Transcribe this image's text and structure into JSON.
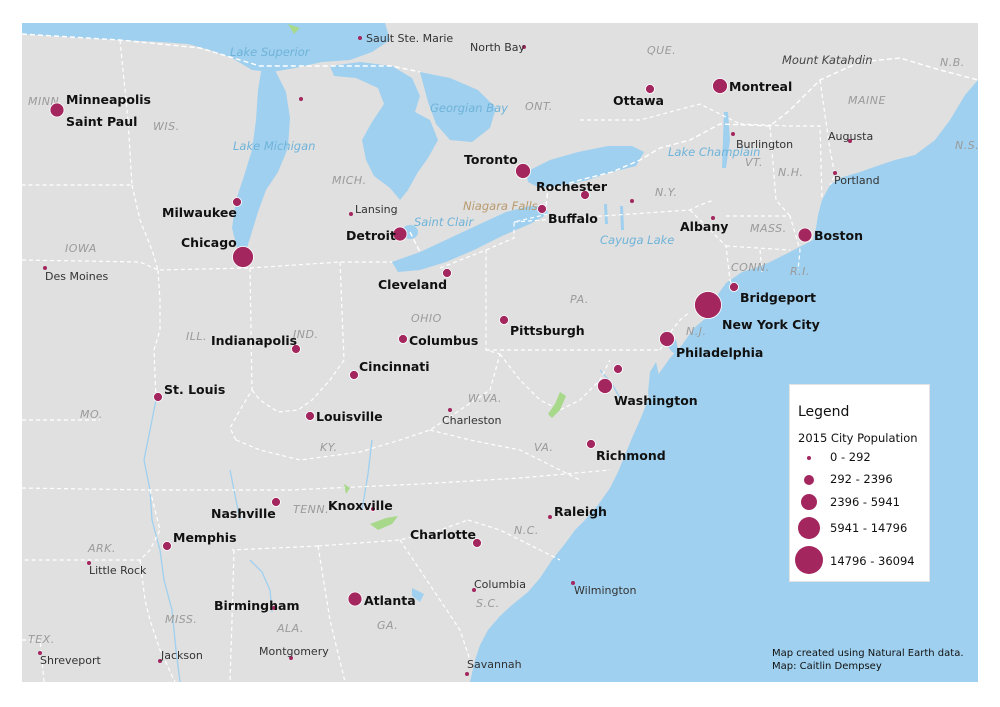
{
  "legend": {
    "title": "Legend",
    "subtitle": "2015 City Population",
    "classes": [
      "0 - 292",
      "292 - 2396",
      "2396 - 5941",
      "5941 - 14796",
      "14796 - 36094"
    ]
  },
  "credits": {
    "line1": "Map created using Natural Earth data.",
    "line2": "Map: Caitlin Dempsey"
  },
  "colors": {
    "land": "#e0e0e0",
    "water": "#9fd0ef",
    "city": "#a3275e",
    "borders": "#ffffff"
  },
  "major_cities": [
    "Minneapolis",
    "Saint Paul",
    "Milwaukee",
    "Chicago",
    "Detroit",
    "Toronto",
    "Rochester",
    "Buffalo",
    "Ottawa",
    "Montreal",
    "Cleveland",
    "Pittsburgh",
    "Columbus",
    "Indianapolis",
    "Cincinnati",
    "St. Louis",
    "Louisville",
    "Albany",
    "Boston",
    "Bridgeport",
    "New York City",
    "Philadelphia",
    "Washington",
    "Richmond",
    "Nashville",
    "Knoxville",
    "Raleigh",
    "Charlotte",
    "Memphis",
    "Atlanta",
    "Birmingham"
  ],
  "minor_cities": [
    "Sault Ste. Marie",
    "North Bay",
    "Burlington",
    "Augusta",
    "Portland",
    "Lansing",
    "Des Moines",
    "Charleston",
    "Little Rock",
    "Columbia",
    "Wilmington",
    "Jackson",
    "Montgomery",
    "Shreveport",
    "Savannah"
  ],
  "regions": [
    "MINN.",
    "WIS.",
    "IOWA",
    "MICH.",
    "ONT.",
    "QUE.",
    "N.B.",
    "MAINE",
    "N.S.",
    "VT.",
    "N.H.",
    "N.Y.",
    "MASS.",
    "CONN.",
    "R.I.",
    "PA.",
    "N.J.",
    "OHIO",
    "IND.",
    "ILL.",
    "MO.",
    "W.VA.",
    "KY.",
    "VA.",
    "TENN.",
    "N.C.",
    "ARK.",
    "S.C.",
    "MISS.",
    "ALA.",
    "GA.",
    "TEX."
  ],
  "water_labels": [
    "Lake Superior",
    "Lake Michigan",
    "Georgian Bay",
    "Lake Champlain",
    "Cayuga Lake",
    "Saint Clair"
  ],
  "other_labels": {
    "peak": "Mount Katahdin",
    "falls": "Niagara Falls"
  }
}
